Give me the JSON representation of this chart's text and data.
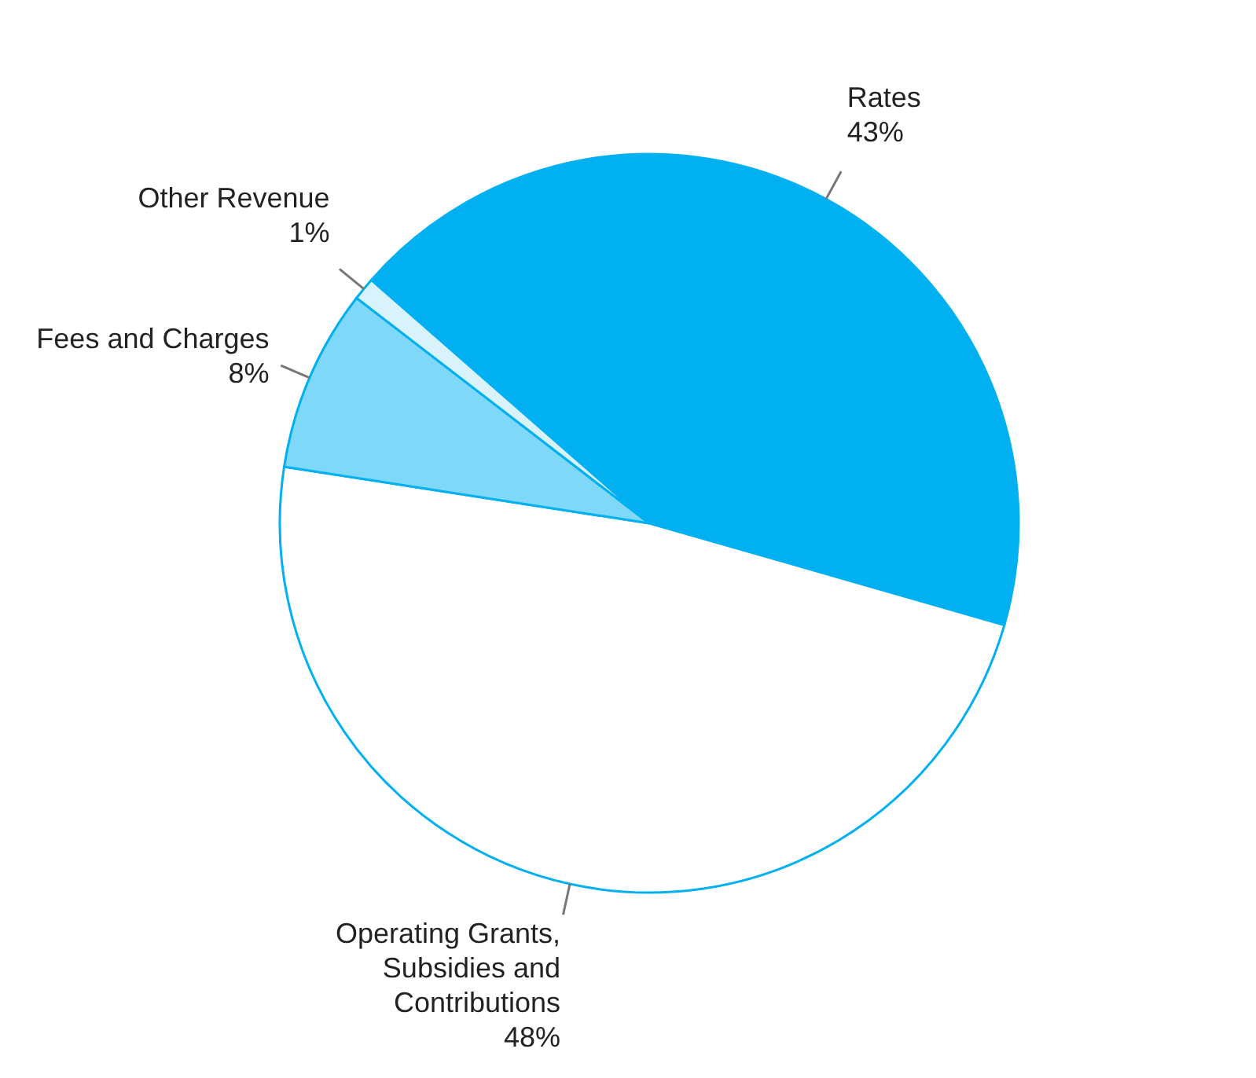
{
  "chart_data": {
    "type": "pie",
    "categories": [
      "Rates",
      "Operating Grants, Subsidies and Contributions",
      "Fees and Charges",
      "Other Revenue"
    ],
    "values": [
      43,
      48,
      8,
      1
    ],
    "value_labels": [
      "43%",
      "48%",
      "8%",
      "1%"
    ],
    "colors": [
      "#00b0f0",
      "#ffffff",
      "#80d8f8",
      "#d9f3fd"
    ],
    "legend": false
  }
}
